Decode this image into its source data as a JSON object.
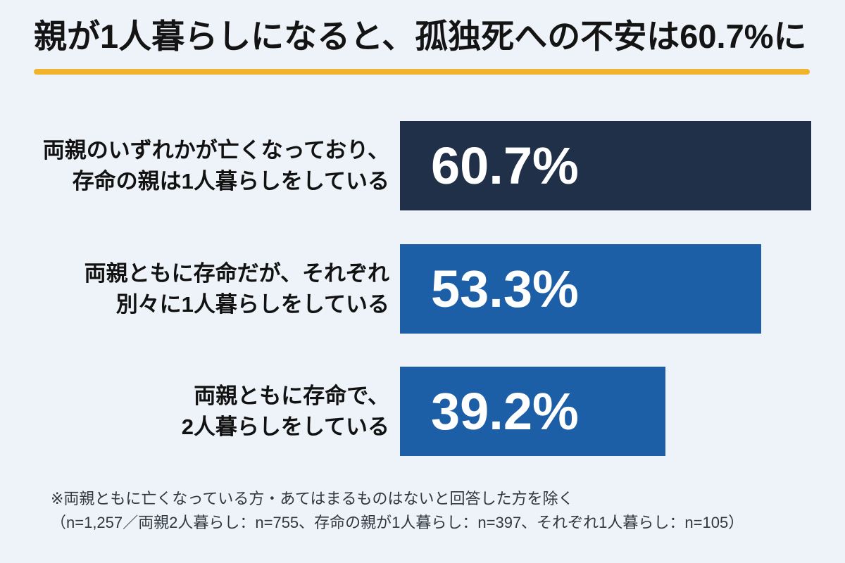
{
  "page": {
    "background_color": "#EDF3F8"
  },
  "header": {
    "title": "親が1人暮らしになると、孤独死への不安は60.7%に",
    "accent_color": "#F1B32B",
    "title_color": "#141414"
  },
  "bars": [
    {
      "label": "両親のいずれかが亡くなっており、\n存命の親は1人暮らしをしている",
      "percent_label": "60.7%",
      "value": 60.7,
      "color": "#213049"
    },
    {
      "label": "両親ともに存命だが、それぞれ\n別々に1人暮らしをしている",
      "percent_label": "53.3%",
      "value": 53.3,
      "color": "#1C5FA7"
    },
    {
      "label": "両親ともに存命で、\n2人暮らしをしている",
      "percent_label": "39.2%",
      "value": 39.2,
      "color": "#1C5FA7"
    }
  ],
  "footnote": {
    "line1": "※両親ともに亡くなっている方・あてはまるものはないと回答した方を除く",
    "line2": "（n=1,257／両親2人暮らし：n=755、存命の親が1人暮らし：n=397、それぞれ1人暮らし：n=105）"
  },
  "chart_data": {
    "type": "bar",
    "orientation": "horizontal",
    "title": "親が1人暮らしになると、孤独死への不安は60.7%に",
    "categories": [
      "両親のいずれかが亡くなっており、存命の親は1人暮らしをしている",
      "両親ともに存命だが、それぞれ別々に1人暮らしをしている",
      "両親ともに存命で、2人暮らしをしている"
    ],
    "values": [
      60.7,
      53.3,
      39.2
    ],
    "value_labels": [
      "60.7%",
      "53.3%",
      "39.2%"
    ],
    "unit": "%",
    "xlim": [
      0,
      63
    ],
    "grid": false,
    "legend": "none",
    "bar_colors": [
      "#213049",
      "#1C5FA7",
      "#1C5FA7"
    ],
    "value_label_position": "inside-left",
    "annotations": [
      "※両親ともに亡くなっている方・あてはまるものはないと回答した方を除く",
      "（n=1,257／両親2人暮らし：n=755、存命の親が1人暮らし：n=397、それぞれ1人暮らし：n=105）"
    ]
  }
}
